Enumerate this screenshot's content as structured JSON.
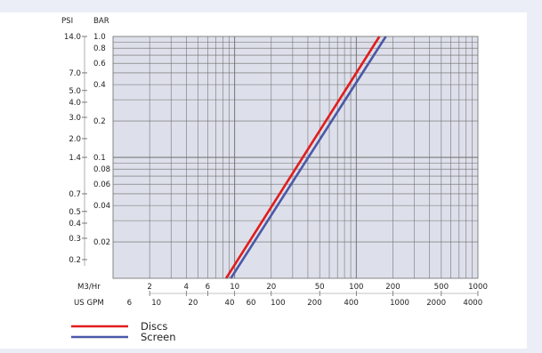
{
  "chart_data": {
    "type": "line",
    "colors": {
      "plot_background": "#dde0ea",
      "grid": "#6b6b6b",
      "discs": "#e11c1c",
      "screen": "#4b58a6"
    },
    "axes": {
      "y_left": {
        "label": "PSI",
        "scale": "log",
        "ticks": [
          {
            "value": 14.0,
            "label": "14.0"
          },
          {
            "value": 7.0,
            "label": "7.0"
          },
          {
            "value": 5.0,
            "label": "5.0"
          },
          {
            "value": 4.0,
            "label": "4.0"
          },
          {
            "value": 3.0,
            "label": "3.0"
          },
          {
            "value": 2.0,
            "label": "2.0"
          },
          {
            "value": 1.4,
            "label": "1.4"
          },
          {
            "value": 0.7,
            "label": "0.7"
          },
          {
            "value": 0.5,
            "label": "0.5"
          },
          {
            "value": 0.4,
            "label": "0.4"
          },
          {
            "value": 0.3,
            "label": "0.3"
          },
          {
            "value": 0.2,
            "label": "0.2"
          }
        ]
      },
      "y_right": {
        "label": "BAR",
        "scale": "log",
        "range": [
          0.01,
          1.0
        ],
        "ticks": [
          {
            "value": 1.0,
            "label": "1.0"
          },
          {
            "value": 0.8,
            "label": "0.8"
          },
          {
            "value": 0.6,
            "label": "0.6"
          },
          {
            "value": 0.4,
            "label": "0.4"
          },
          {
            "value": 0.2,
            "label": "0.2"
          },
          {
            "value": 0.1,
            "label": "0.1"
          },
          {
            "value": 0.08,
            "label": "0.08"
          },
          {
            "value": 0.06,
            "label": "0.06"
          },
          {
            "value": 0.04,
            "label": "0.04"
          },
          {
            "value": 0.02,
            "label": "0.02"
          }
        ]
      },
      "x_m3hr": {
        "label": "M3/Hr",
        "scale": "log",
        "range": [
          1,
          1000
        ],
        "ticks": [
          {
            "value": 2,
            "label": "2"
          },
          {
            "value": 4,
            "label": "4"
          },
          {
            "value": 6,
            "label": "6"
          },
          {
            "value": 10,
            "label": "10"
          },
          {
            "value": 20,
            "label": "20"
          },
          {
            "value": 50,
            "label": "50"
          },
          {
            "value": 100,
            "label": "100"
          },
          {
            "value": 200,
            "label": "200"
          },
          {
            "value": 500,
            "label": "500"
          },
          {
            "value": 1000,
            "label": "1000"
          }
        ]
      },
      "x_usgpm": {
        "label": "US GPM",
        "scale": "log",
        "ticks": [
          {
            "value": 6,
            "label": "6"
          },
          {
            "value": 10,
            "label": "10"
          },
          {
            "value": 20,
            "label": "20"
          },
          {
            "value": 40,
            "label": "40"
          },
          {
            "value": 60,
            "label": "60"
          },
          {
            "value": 100,
            "label": "100"
          },
          {
            "value": 200,
            "label": "200"
          },
          {
            "value": 400,
            "label": "400"
          },
          {
            "value": 1000,
            "label": "1000"
          },
          {
            "value": 2000,
            "label": "2000"
          },
          {
            "value": 4000,
            "label": "4000"
          }
        ]
      }
    },
    "grid": true,
    "legend": "bottom-left",
    "series": [
      {
        "name": "Discs",
        "x": [
          8.5,
          155
        ],
        "y": [
          0.01,
          1.0
        ]
      },
      {
        "name": "Screen",
        "x": [
          9.3,
          175
        ],
        "y": [
          0.01,
          1.0
        ]
      }
    ]
  }
}
